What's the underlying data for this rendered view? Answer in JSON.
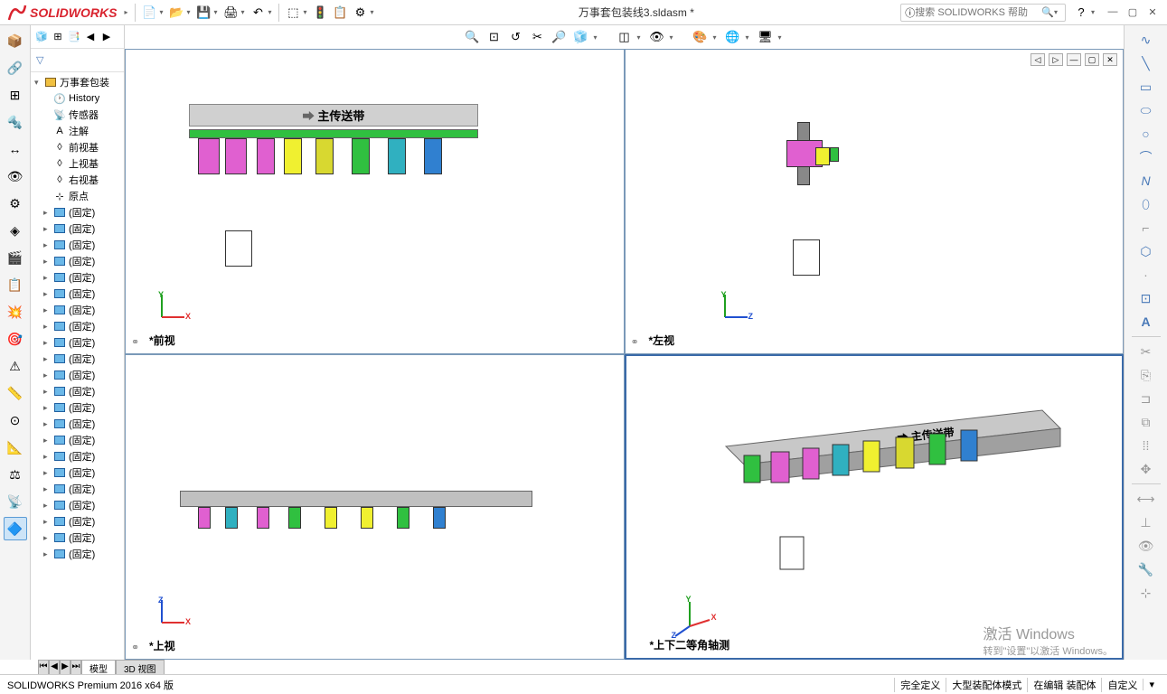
{
  "app": {
    "logo_text": "SOLIDWORKS",
    "document_title": "万事套包装线3.sldasm *",
    "search_placeholder": "搜索 SOLIDWORKS 帮助",
    "version_text": "SOLIDWORKS Premium 2016 x64 版"
  },
  "colors": {
    "brand": "#d9232e",
    "border": "#d0d0d0",
    "viewport_border": "#7a99b8",
    "viewport_active": "#3a6aa8",
    "axis_x": "#e03030",
    "axis_y": "#20a020",
    "axis_z": "#2050d0"
  },
  "tree": {
    "root": "万事套包装",
    "items": [
      {
        "label": "History",
        "icon": "history"
      },
      {
        "label": "传感器",
        "icon": "sensor"
      },
      {
        "label": "注解",
        "icon": "annotation"
      },
      {
        "label": "前视基",
        "icon": "plane"
      },
      {
        "label": "上视基",
        "icon": "plane"
      },
      {
        "label": "右视基",
        "icon": "plane"
      },
      {
        "label": "原点",
        "icon": "origin"
      },
      {
        "label": "(固定)",
        "icon": "part"
      },
      {
        "label": "(固定)",
        "icon": "part"
      },
      {
        "label": "(固定)",
        "icon": "part"
      },
      {
        "label": "(固定)",
        "icon": "part"
      },
      {
        "label": "(固定)",
        "icon": "part"
      },
      {
        "label": "(固定)",
        "icon": "part"
      },
      {
        "label": "(固定)",
        "icon": "part"
      },
      {
        "label": "(固定)",
        "icon": "part"
      },
      {
        "label": "(固定)",
        "icon": "part"
      },
      {
        "label": "(固定)",
        "icon": "part"
      },
      {
        "label": "(固定)",
        "icon": "part"
      },
      {
        "label": "(固定)",
        "icon": "part"
      },
      {
        "label": "(固定)",
        "icon": "part"
      },
      {
        "label": "(固定)",
        "icon": "part"
      },
      {
        "label": "(固定)",
        "icon": "part"
      },
      {
        "label": "(固定)",
        "icon": "part"
      },
      {
        "label": "(固定)",
        "icon": "part"
      },
      {
        "label": "(固定)",
        "icon": "part"
      },
      {
        "label": "(固定)",
        "icon": "part"
      },
      {
        "label": "(固定)",
        "icon": "part"
      },
      {
        "label": "(固定)",
        "icon": "part"
      },
      {
        "label": "(固定)",
        "icon": "part"
      }
    ]
  },
  "viewports": {
    "top_left": {
      "label": "*前视",
      "axis1": "Y",
      "axis2": "X",
      "conveyor": "主传送带"
    },
    "top_right": {
      "label": "*左视",
      "axis1": "Y",
      "axis2": "Z"
    },
    "bottom_left": {
      "label": "*上视",
      "axis1": "Z",
      "axis2": "X"
    },
    "bottom_right": {
      "label": "*上下二等角轴测",
      "conveyor": "主传送带"
    }
  },
  "bottom_tabs": {
    "tab1": "模型",
    "tab2": "3D 视图"
  },
  "statusbar": {
    "item1": "完全定义",
    "item2": "大型装配体模式",
    "item3": "在编辑 装配体",
    "item4": "自定义"
  },
  "watermark": {
    "line1": "激活 Windows",
    "line2": "转到\"设置\"以激活 Windows。"
  }
}
